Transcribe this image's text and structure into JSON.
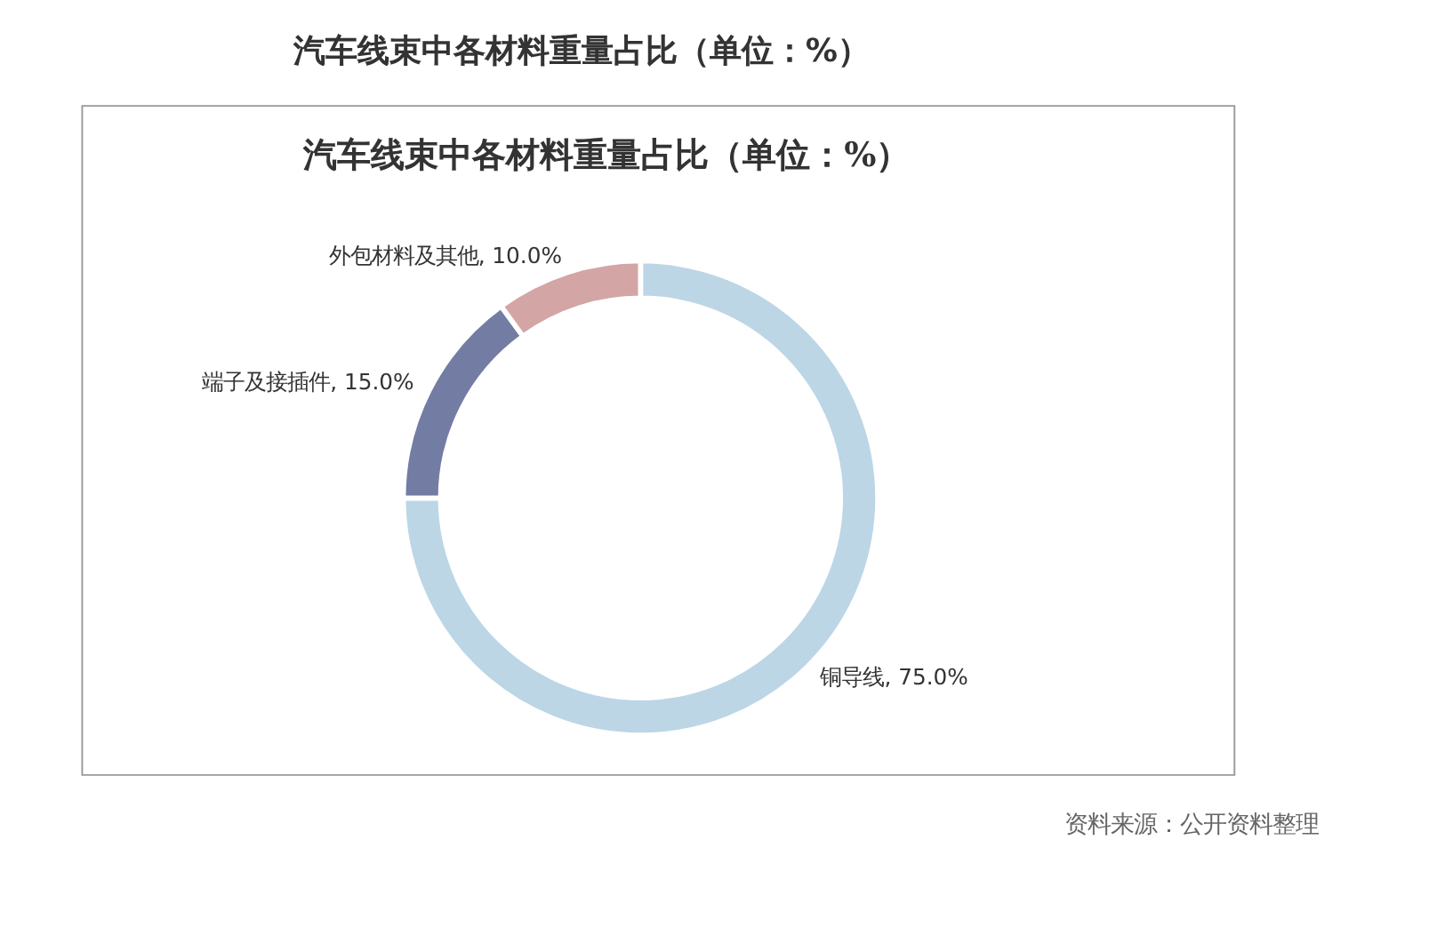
{
  "chart_data": {
    "type": "donut",
    "title": "汽车线束中各材料重量占比（单位：%）",
    "subtitle": "汽车线束中各材料重量占比（单位：%）",
    "categories": [
      "铜导线",
      "端子及接插件",
      "外包材料及其他"
    ],
    "values": [
      75,
      15,
      10
    ],
    "colors": [
      "#bcd6e6",
      "#737ca3",
      "#d4a5a5"
    ],
    "value_labels": [
      "75.0%",
      "15.0%",
      "10.0%"
    ],
    "legend": false,
    "annotations": [
      "资料来源：公开资料整理"
    ]
  }
}
